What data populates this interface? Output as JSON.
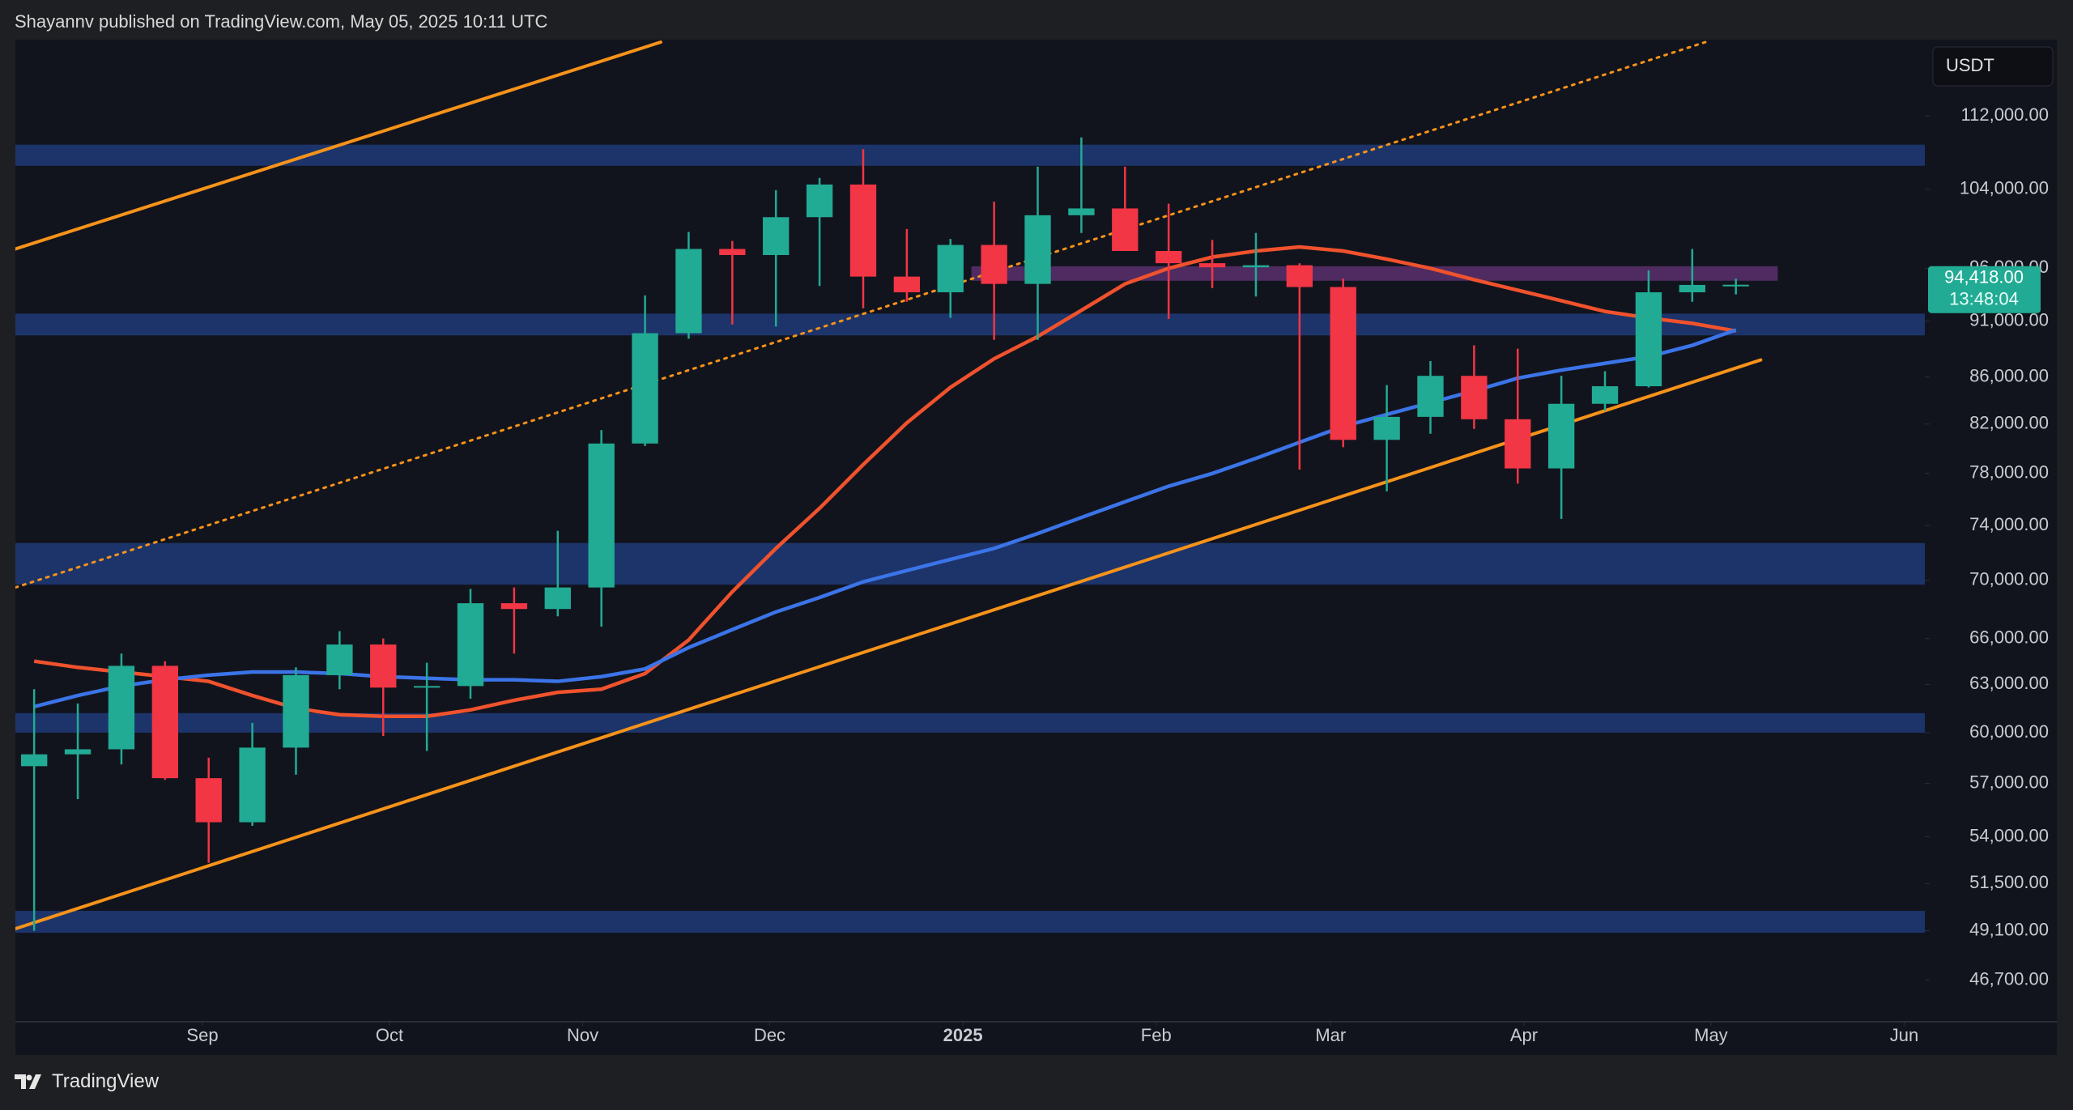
{
  "header": "Shayannv published on TradingView.com, May 05, 2025 10:11 UTC",
  "footer": "TradingView",
  "chart_data": {
    "type": "candlestick",
    "currency": "USDT",
    "log_scale": true,
    "grid": false,
    "up_color": "#22ab94",
    "down_color": "#f23645",
    "categories": [
      null,
      null,
      null,
      null,
      null,
      null,
      null,
      null,
      null,
      null,
      null,
      null,
      null,
      null,
      null,
      null,
      null,
      null,
      null,
      null,
      null,
      null,
      null,
      null,
      null,
      null,
      null,
      null,
      null,
      null,
      null,
      null,
      null,
      null,
      null,
      null,
      null,
      null,
      null,
      null
    ],
    "open": [
      58000,
      58700,
      59000,
      64200,
      57300,
      54800,
      59100,
      63600,
      65600,
      62800,
      62900,
      68400,
      68000,
      69500,
      80400,
      89900,
      97900,
      97300,
      101100,
      104500,
      95200,
      93700,
      98300,
      94500,
      101300,
      102000,
      97700,
      96500,
      96100,
      96300,
      94200,
      80700,
      82600,
      86100,
      82400,
      78400,
      83700,
      85200,
      93700,
      94400
    ],
    "high": [
      62700,
      61800,
      65000,
      64500,
      58500,
      60600,
      64100,
      66500,
      66000,
      64400,
      69400,
      69500,
      73600,
      81500,
      93400,
      99600,
      98700,
      103900,
      105200,
      108300,
      99900,
      98900,
      102700,
      106400,
      109600,
      106400,
      102500,
      98800,
      99500,
      96500,
      95000,
      85300,
      87400,
      88800,
      88500,
      86100,
      86500,
      95800,
      97900,
      95000
    ],
    "low": [
      49100,
      56100,
      58100,
      57200,
      52600,
      54600,
      57500,
      62700,
      59800,
      58900,
      62100,
      65000,
      67500,
      66800,
      80200,
      89400,
      90700,
      90500,
      94300,
      92200,
      92800,
      91300,
      89300,
      89300,
      99500,
      97700,
      91200,
      94100,
      93300,
      78300,
      80100,
      76600,
      81200,
      81600,
      77200,
      74500,
      83100,
      85100,
      92800,
      93500
    ],
    "close": [
      58700,
      59000,
      64200,
      57300,
      54800,
      59100,
      63600,
      65600,
      62800,
      62900,
      68400,
      68000,
      69500,
      80400,
      89900,
      97900,
      97300,
      101100,
      104500,
      95200,
      93700,
      98300,
      94500,
      101300,
      102000,
      97700,
      96500,
      96100,
      96300,
      94200,
      80700,
      82600,
      86100,
      82400,
      78400,
      83700,
      85200,
      93700,
      94400,
      94418
    ],
    "series": [
      {
        "color": "#f0522d",
        "values": [
          64500,
          64100,
          63800,
          63500,
          63200,
          62300,
          61500,
          61100,
          61000,
          61000,
          61400,
          62000,
          62500,
          62700,
          63700,
          65900,
          69200,
          72300,
          75300,
          78700,
          82100,
          85100,
          87600,
          89600,
          92000,
          94500,
          96000,
          97100,
          97700,
          98100,
          97700,
          96900,
          96000,
          94900,
          93900,
          92900,
          91900,
          91300,
          90800,
          90100
        ]
      },
      {
        "color": "#3b74e8",
        "values": [
          61600,
          62300,
          62900,
          63300,
          63600,
          63800,
          63800,
          63700,
          63500,
          63400,
          63300,
          63300,
          63200,
          63500,
          64000,
          65400,
          66600,
          67800,
          68800,
          69900,
          70700,
          71500,
          72300,
          73400,
          74600,
          75800,
          77000,
          78000,
          79200,
          80500,
          81800,
          82800,
          83800,
          84800,
          85900,
          86600,
          87200,
          87800,
          88800,
          90200
        ]
      }
    ],
    "zones": [
      {
        "color": "#1f3a78",
        "values": [
          108800,
          106500
        ]
      },
      {
        "color": "#1f3a78",
        "values": [
          91700,
          89700
        ]
      },
      {
        "color": "#1f3a78",
        "values": [
          72700,
          69700
        ]
      },
      {
        "color": "#1f3a78",
        "values": [
          61200,
          60000
        ]
      },
      {
        "color": "#1f3a78",
        "values": [
          50100,
          49000
        ]
      },
      {
        "color": "#5b2f6e",
        "values": [
          96200,
          94800
        ],
        "x": [
          21.48,
          39.96
        ]
      }
    ],
    "trendlines": [
      {
        "color": "#f7931a",
        "style": "solid",
        "x": [
          -0.43,
          14.36
        ],
        "values": [
          97900,
          120700
        ]
      },
      {
        "color": "#f7931a",
        "style": "solid",
        "x": [
          -0.43,
          39.57
        ],
        "values": [
          49200,
          87500
        ]
      },
      {
        "color": "#f7931a",
        "style": "dotted",
        "x": [
          -0.43,
          38.3
        ],
        "values": [
          69500,
          120700
        ]
      }
    ],
    "last_price": {
      "value": 94418,
      "label": "94,418.00"
    },
    "countdown": "13:48:04",
    "xlim": [
      -0.43,
      43.33
    ],
    "xticks": [
      {
        "value": 3.857,
        "label": "Sep"
      },
      {
        "value": 8.143,
        "label": "Oct"
      },
      {
        "value": 12.571,
        "label": "Nov"
      },
      {
        "value": 16.857,
        "label": "Dec"
      },
      {
        "value": 21.286,
        "label": "2025"
      },
      {
        "value": 25.714,
        "label": "Feb"
      },
      {
        "value": 29.714,
        "label": "Mar"
      },
      {
        "value": 34.143,
        "label": "Apr"
      },
      {
        "value": 38.429,
        "label": "May"
      },
      {
        "value": 42.857,
        "label": "Jun"
      }
    ],
    "ylim": [
      43300,
      121000
    ],
    "yticks": [
      {
        "value": 112000,
        "label": "112,000.00"
      },
      {
        "value": 104000,
        "label": "104,000.00"
      },
      {
        "value": 96000,
        "label": "96,000.00"
      },
      {
        "value": 91000,
        "label": "91,000.00"
      },
      {
        "value": 86000,
        "label": "86,000.00"
      },
      {
        "value": 82000,
        "label": "82,000.00"
      },
      {
        "value": 78000,
        "label": "78,000.00"
      },
      {
        "value": 74000,
        "label": "74,000.00"
      },
      {
        "value": 70000,
        "label": "70,000.00"
      },
      {
        "value": 66000,
        "label": "66,000.00"
      },
      {
        "value": 63000,
        "label": "63,000.00"
      },
      {
        "value": 60000,
        "label": "60,000.00"
      },
      {
        "value": 57000,
        "label": "57,000.00"
      },
      {
        "value": 54000,
        "label": "54,000.00"
      },
      {
        "value": 51500,
        "label": "51,500.00"
      },
      {
        "value": 49100,
        "label": "49,100.00"
      },
      {
        "value": 46700,
        "label": "46,700.00"
      }
    ]
  }
}
